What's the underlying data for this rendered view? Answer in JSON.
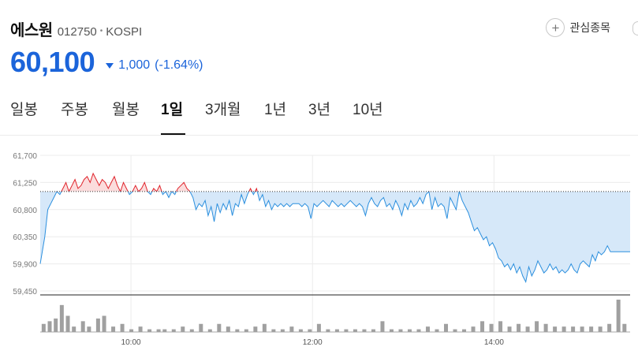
{
  "stock": {
    "name": "에스원",
    "code": "012750",
    "market": "KOSPI",
    "price": "60,100",
    "change": "1,000",
    "change_pct": "(-1.64%)",
    "direction": "down"
  },
  "watchlist": {
    "icon": "plus-icon",
    "label": "관심종목"
  },
  "tabs": [
    {
      "label": "일봉"
    },
    {
      "label": "주봉"
    },
    {
      "label": "월봉"
    },
    {
      "label": "1일"
    },
    {
      "label": "3개월"
    },
    {
      "label": "1년"
    },
    {
      "label": "3년"
    },
    {
      "label": "10년"
    }
  ],
  "active_tab": "1일",
  "colors": {
    "up": "#e0242c",
    "down": "#1b64da",
    "line_blue": "#2b8fde",
    "area_blue": "#d6e8f9",
    "area_red": "#fbdcdc",
    "volume": "#a0a0a0"
  },
  "chart_data": {
    "type": "area",
    "reference_price": 61100,
    "ylim": [
      59450,
      61700
    ],
    "y_ticks": [
      "61,700",
      "61,250",
      "60,800",
      "60,350",
      "59,900",
      "59,450"
    ],
    "x_ticks": [
      "10:00",
      "12:00",
      "14:00"
    ],
    "x_range": [
      "09:00",
      "15:30"
    ],
    "series": [
      {
        "points": [
          [
            "09:00",
            59900
          ],
          [
            "09:03",
            60350
          ],
          [
            "09:05",
            60800
          ],
          [
            "09:07",
            60900
          ],
          [
            "09:09",
            61000
          ],
          [
            "09:11",
            61100
          ],
          [
            "09:13",
            61050
          ],
          [
            "09:15",
            61150
          ],
          [
            "09:17",
            61250
          ],
          [
            "09:19",
            61100
          ],
          [
            "09:21",
            61200
          ],
          [
            "09:23",
            61300
          ],
          [
            "09:25",
            61150
          ],
          [
            "09:27",
            61200
          ],
          [
            "09:29",
            61300
          ],
          [
            "09:31",
            61350
          ],
          [
            "09:33",
            61250
          ],
          [
            "09:35",
            61400
          ],
          [
            "09:37",
            61300
          ],
          [
            "09:39",
            61200
          ],
          [
            "09:41",
            61300
          ],
          [
            "09:43",
            61250
          ],
          [
            "09:45",
            61150
          ],
          [
            "09:47",
            61250
          ],
          [
            "09:49",
            61350
          ],
          [
            "09:51",
            61200
          ],
          [
            "09:53",
            61100
          ],
          [
            "09:55",
            61250
          ],
          [
            "09:57",
            61150
          ],
          [
            "09:59",
            61050
          ],
          [
            "10:01",
            61100
          ],
          [
            "10:03",
            61200
          ],
          [
            "10:05",
            61100
          ],
          [
            "10:07",
            61150
          ],
          [
            "10:09",
            61250
          ],
          [
            "10:11",
            61100
          ],
          [
            "10:13",
            61050
          ],
          [
            "10:15",
            61150
          ],
          [
            "10:17",
            61100
          ],
          [
            "10:19",
            61200
          ],
          [
            "10:21",
            61050
          ],
          [
            "10:23",
            61100
          ],
          [
            "10:25",
            61000
          ],
          [
            "10:27",
            61100
          ],
          [
            "10:29",
            61050
          ],
          [
            "10:31",
            61150
          ],
          [
            "10:33",
            61200
          ],
          [
            "10:35",
            61250
          ],
          [
            "10:37",
            61150
          ],
          [
            "10:39",
            61100
          ],
          [
            "10:41",
            61000
          ],
          [
            "10:43",
            60800
          ],
          [
            "10:45",
            60900
          ],
          [
            "10:47",
            60850
          ],
          [
            "10:49",
            60950
          ],
          [
            "10:51",
            60700
          ],
          [
            "10:53",
            60850
          ],
          [
            "10:55",
            60600
          ],
          [
            "10:57",
            60900
          ],
          [
            "10:59",
            60750
          ],
          [
            "11:01",
            60900
          ],
          [
            "11:03",
            60800
          ],
          [
            "11:05",
            60950
          ],
          [
            "11:07",
            60700
          ],
          [
            "11:09",
            60900
          ],
          [
            "11:11",
            60850
          ],
          [
            "11:13",
            61050
          ],
          [
            "11:15",
            60900
          ],
          [
            "11:17",
            61050
          ],
          [
            "11:19",
            61150
          ],
          [
            "11:21",
            61050
          ],
          [
            "11:23",
            61150
          ],
          [
            "11:25",
            60950
          ],
          [
            "11:27",
            61050
          ],
          [
            "11:29",
            60850
          ],
          [
            "11:31",
            60950
          ],
          [
            "11:33",
            60800
          ],
          [
            "11:35",
            60900
          ],
          [
            "11:37",
            60850
          ],
          [
            "11:39",
            60900
          ],
          [
            "11:41",
            60850
          ],
          [
            "11:43",
            60900
          ],
          [
            "11:45",
            60850
          ],
          [
            "11:47",
            60900
          ],
          [
            "11:49",
            60900
          ],
          [
            "11:51",
            60900
          ],
          [
            "11:53",
            60850
          ],
          [
            "11:55",
            60900
          ],
          [
            "11:57",
            60850
          ],
          [
            "11:59",
            60650
          ],
          [
            "12:01",
            60900
          ],
          [
            "12:03",
            60850
          ],
          [
            "12:05",
            60900
          ],
          [
            "12:07",
            60950
          ],
          [
            "12:09",
            60900
          ],
          [
            "12:11",
            60850
          ],
          [
            "12:13",
            60950
          ],
          [
            "12:15",
            60900
          ],
          [
            "12:17",
            60850
          ],
          [
            "12:19",
            60900
          ],
          [
            "12:21",
            60850
          ],
          [
            "12:23",
            60900
          ],
          [
            "12:25",
            60950
          ],
          [
            "12:27",
            60900
          ],
          [
            "12:29",
            60850
          ],
          [
            "12:31",
            60900
          ],
          [
            "12:33",
            60850
          ],
          [
            "12:35",
            60700
          ],
          [
            "12:37",
            60900
          ],
          [
            "12:39",
            61000
          ],
          [
            "12:41",
            60900
          ],
          [
            "12:43",
            60850
          ],
          [
            "12:45",
            60950
          ],
          [
            "12:47",
            61000
          ],
          [
            "12:49",
            60850
          ],
          [
            "12:51",
            60900
          ],
          [
            "12:53",
            60800
          ],
          [
            "12:55",
            60950
          ],
          [
            "12:57",
            60850
          ],
          [
            "12:59",
            60700
          ],
          [
            "13:01",
            60900
          ],
          [
            "13:03",
            60800
          ],
          [
            "13:05",
            60950
          ],
          [
            "13:07",
            60850
          ],
          [
            "13:09",
            60900
          ],
          [
            "13:11",
            61000
          ],
          [
            "13:13",
            60900
          ],
          [
            "13:15",
            61050
          ],
          [
            "13:17",
            61100
          ],
          [
            "13:19",
            60800
          ],
          [
            "13:21",
            61000
          ],
          [
            "13:23",
            60850
          ],
          [
            "13:25",
            60900
          ],
          [
            "13:27",
            60850
          ],
          [
            "13:29",
            60650
          ],
          [
            "13:31",
            61000
          ],
          [
            "13:33",
            60900
          ],
          [
            "13:35",
            60800
          ],
          [
            "13:37",
            61100
          ],
          [
            "13:39",
            60950
          ],
          [
            "13:41",
            60850
          ],
          [
            "13:43",
            60750
          ],
          [
            "13:45",
            60600
          ],
          [
            "13:47",
            60450
          ],
          [
            "13:49",
            60500
          ],
          [
            "13:51",
            60400
          ],
          [
            "13:53",
            60300
          ],
          [
            "13:55",
            60350
          ],
          [
            "13:57",
            60200
          ],
          [
            "13:59",
            60250
          ],
          [
            "14:01",
            60150
          ],
          [
            "14:03",
            60000
          ],
          [
            "14:05",
            59950
          ],
          [
            "14:07",
            59850
          ],
          [
            "14:09",
            59900
          ],
          [
            "14:11",
            59800
          ],
          [
            "14:13",
            59900
          ],
          [
            "14:15",
            59750
          ],
          [
            "14:17",
            59850
          ],
          [
            "14:19",
            59700
          ],
          [
            "14:21",
            59600
          ],
          [
            "14:23",
            59850
          ],
          [
            "14:25",
            59700
          ],
          [
            "14:27",
            59800
          ],
          [
            "14:29",
            59950
          ],
          [
            "14:31",
            59850
          ],
          [
            "14:33",
            59750
          ],
          [
            "14:35",
            59800
          ],
          [
            "14:37",
            59900
          ],
          [
            "14:39",
            59800
          ],
          [
            "14:41",
            59850
          ],
          [
            "14:43",
            59750
          ],
          [
            "14:45",
            59800
          ],
          [
            "14:47",
            59750
          ],
          [
            "14:49",
            59800
          ],
          [
            "14:51",
            59900
          ],
          [
            "14:53",
            59800
          ],
          [
            "14:55",
            59750
          ],
          [
            "14:57",
            59900
          ],
          [
            "14:59",
            59950
          ],
          [
            "15:01",
            59900
          ],
          [
            "15:03",
            59850
          ],
          [
            "15:05",
            60050
          ],
          [
            "15:07",
            59950
          ],
          [
            "15:09",
            60100
          ],
          [
            "15:11",
            60050
          ],
          [
            "15:13",
            60100
          ],
          [
            "15:15",
            60200
          ],
          [
            "15:17",
            60100
          ],
          [
            "15:19",
            60100
          ],
          [
            "15:21",
            60100
          ],
          [
            "15:24",
            60100
          ],
          [
            "15:27",
            60100
          ],
          [
            "15:30",
            60100
          ]
        ]
      }
    ],
    "volume": [
      [
        "09:02",
        3
      ],
      [
        "09:06",
        4
      ],
      [
        "09:10",
        5
      ],
      [
        "09:14",
        10
      ],
      [
        "09:18",
        6
      ],
      [
        "09:22",
        2
      ],
      [
        "09:28",
        4
      ],
      [
        "09:32",
        2
      ],
      [
        "09:38",
        5
      ],
      [
        "09:42",
        6
      ],
      [
        "09:48",
        2
      ],
      [
        "09:54",
        3
      ],
      [
        "10:00",
        1
      ],
      [
        "10:06",
        2
      ],
      [
        "10:12",
        1
      ],
      [
        "10:18",
        1
      ],
      [
        "10:22",
        1
      ],
      [
        "10:28",
        1
      ],
      [
        "10:34",
        2
      ],
      [
        "10:40",
        1
      ],
      [
        "10:46",
        3
      ],
      [
        "10:52",
        1
      ],
      [
        "10:58",
        3
      ],
      [
        "11:04",
        2
      ],
      [
        "11:10",
        1
      ],
      [
        "11:16",
        1
      ],
      [
        "11:22",
        2
      ],
      [
        "11:28",
        3
      ],
      [
        "11:34",
        1
      ],
      [
        "11:40",
        1
      ],
      [
        "11:46",
        2
      ],
      [
        "11:52",
        1
      ],
      [
        "11:58",
        1
      ],
      [
        "12:04",
        3
      ],
      [
        "12:10",
        1
      ],
      [
        "12:16",
        1
      ],
      [
        "12:22",
        1
      ],
      [
        "12:28",
        1
      ],
      [
        "12:34",
        1
      ],
      [
        "12:40",
        1
      ],
      [
        "12:46",
        4
      ],
      [
        "12:52",
        1
      ],
      [
        "12:58",
        1
      ],
      [
        "13:04",
        1
      ],
      [
        "13:10",
        1
      ],
      [
        "13:16",
        2
      ],
      [
        "13:22",
        1
      ],
      [
        "13:28",
        3
      ],
      [
        "13:34",
        1
      ],
      [
        "13:40",
        1
      ],
      [
        "13:46",
        2
      ],
      [
        "13:52",
        4
      ],
      [
        "13:58",
        3
      ],
      [
        "14:04",
        4
      ],
      [
        "14:10",
        2
      ],
      [
        "14:16",
        3
      ],
      [
        "14:22",
        2
      ],
      [
        "14:28",
        4
      ],
      [
        "14:34",
        3
      ],
      [
        "14:40",
        2
      ],
      [
        "14:46",
        2
      ],
      [
        "14:52",
        2
      ],
      [
        "14:58",
        2
      ],
      [
        "15:04",
        2
      ],
      [
        "15:10",
        2
      ],
      [
        "15:16",
        3
      ],
      [
        "15:22",
        12
      ],
      [
        "15:26",
        3
      ]
    ]
  }
}
